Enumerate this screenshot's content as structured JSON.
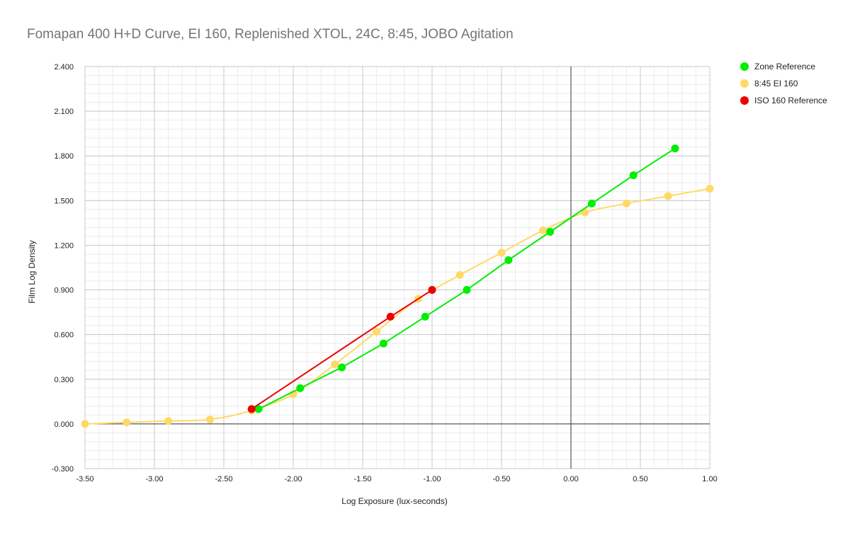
{
  "chart_data": {
    "type": "line",
    "title": "Fomapan 400 H+D Curve, EI 160, Replenished XTOL, 24C, 8:45, JOBO Agitation",
    "xlabel": "Log Exposure (lux-seconds)",
    "ylabel": "Film Log Density",
    "xlim": [
      -3.5,
      1.0
    ],
    "ylim": [
      -0.3,
      2.4
    ],
    "x_ticks": [
      -3.5,
      -3.0,
      -2.5,
      -2.0,
      -1.5,
      -1.0,
      -0.5,
      0.0,
      0.5,
      1.0
    ],
    "x_tick_labels": [
      "-3.50",
      "-3.00",
      "-2.50",
      "-2.00",
      "-1.50",
      "-1.00",
      "-0.50",
      "0.00",
      "0.50",
      "1.00"
    ],
    "y_ticks": [
      -0.3,
      0.0,
      0.3,
      0.6,
      0.9,
      1.2,
      1.5,
      1.8,
      2.1,
      2.4
    ],
    "y_tick_labels": [
      "-0.300",
      "0.000",
      "0.300",
      "0.600",
      "0.900",
      "1.200",
      "1.500",
      "1.800",
      "2.100",
      "2.400"
    ],
    "grid": true,
    "legend_position": "right",
    "series": [
      {
        "name": "Zone Reference",
        "color": "#00ee00",
        "smooth": false,
        "points": [
          [
            -2.25,
            0.1
          ],
          [
            -1.95,
            0.24
          ],
          [
            -1.65,
            0.38
          ],
          [
            -1.35,
            0.54
          ],
          [
            -1.05,
            0.72
          ],
          [
            -0.75,
            0.9
          ],
          [
            -0.45,
            1.1
          ],
          [
            -0.15,
            1.29
          ],
          [
            0.15,
            1.48
          ],
          [
            0.45,
            1.67
          ],
          [
            0.75,
            1.85
          ]
        ]
      },
      {
        "name": "8:45 EI 160",
        "color": "#ffd966",
        "smooth": true,
        "points": [
          [
            -3.5,
            0.0
          ],
          [
            -3.2,
            0.01
          ],
          [
            -2.9,
            0.02
          ],
          [
            -2.6,
            0.03
          ],
          [
            -2.3,
            0.09
          ],
          [
            -2.0,
            0.2
          ],
          [
            -1.7,
            0.4
          ],
          [
            -1.4,
            0.62
          ],
          [
            -1.1,
            0.84
          ],
          [
            -0.8,
            1.0
          ],
          [
            -0.5,
            1.15
          ],
          [
            -0.2,
            1.3
          ],
          [
            0.1,
            1.42
          ],
          [
            0.4,
            1.48
          ],
          [
            0.7,
            1.53
          ],
          [
            1.0,
            1.58
          ]
        ]
      },
      {
        "name": "ISO 160 Reference",
        "color": "#ee0000",
        "smooth": false,
        "points": [
          [
            -2.3,
            0.1
          ],
          [
            -1.3,
            0.72
          ],
          [
            -1.0,
            0.9
          ]
        ]
      }
    ]
  }
}
